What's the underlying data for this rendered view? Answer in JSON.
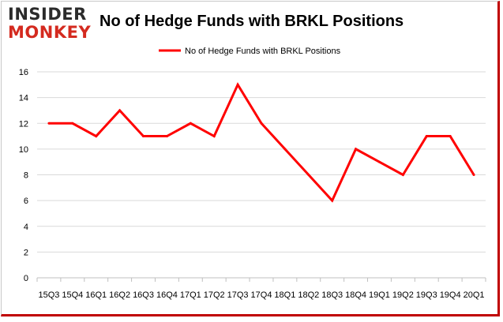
{
  "logo": {
    "line1": "INSIDER",
    "line2": "MONKEY"
  },
  "colors": {
    "series": "#ff0000",
    "grid": "#d9d9d9",
    "brand_red": "#d42a1f",
    "frame_accent": "#c00000"
  },
  "chart_data": {
    "type": "line",
    "title": "No of Hedge Funds with BRKL Positions",
    "xlabel": "",
    "ylabel": "",
    "ylim": [
      0,
      16
    ],
    "yticks": [
      0,
      2,
      4,
      6,
      8,
      10,
      12,
      14,
      16
    ],
    "grid": "horizontal",
    "legend_position": "top-center",
    "categories": [
      "15Q3",
      "15Q4",
      "16Q1",
      "16Q2",
      "16Q3",
      "16Q4",
      "17Q1",
      "17Q2",
      "17Q3",
      "17Q4",
      "18Q1",
      "18Q2",
      "18Q3",
      "18Q4",
      "19Q1",
      "19Q2",
      "19Q3",
      "19Q4",
      "20Q1"
    ],
    "series": [
      {
        "name": "No of Hedge Funds with BRKL Positions",
        "values": [
          12,
          12,
          11,
          13,
          11,
          11,
          12,
          11,
          15,
          12,
          10,
          8,
          6,
          10,
          9,
          8,
          11,
          11,
          8
        ]
      }
    ]
  }
}
